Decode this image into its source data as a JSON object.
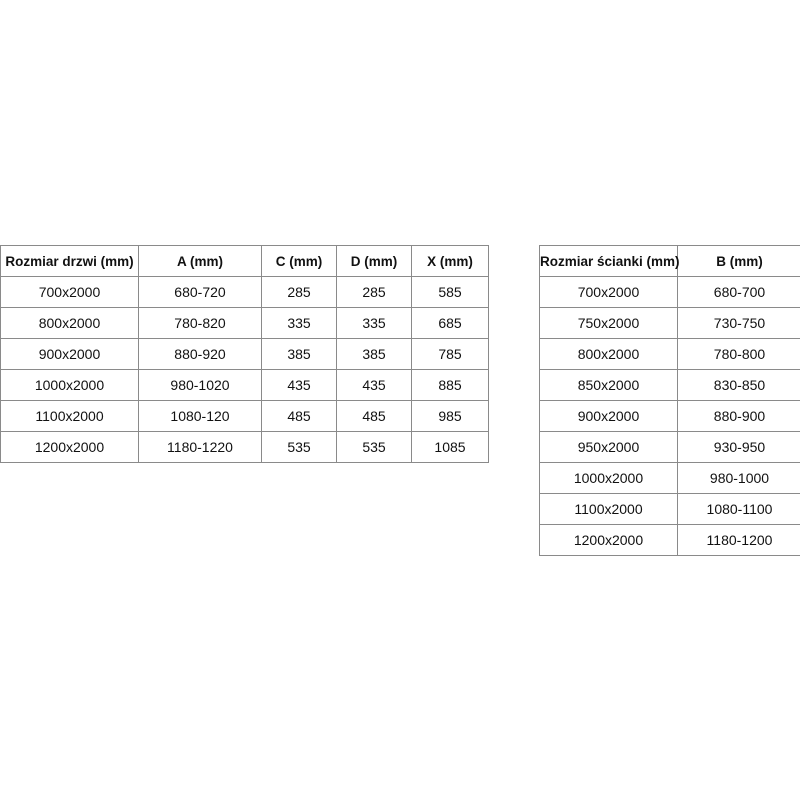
{
  "door_table": {
    "headers": [
      "Rozmiar drzwi (mm)",
      "A (mm)",
      "C (mm)",
      "D (mm)",
      "X (mm)"
    ],
    "rows": [
      [
        "700x2000",
        "680-720",
        "285",
        "285",
        "585"
      ],
      [
        "800x2000",
        "780-820",
        "335",
        "335",
        "685"
      ],
      [
        "900x2000",
        "880-920",
        "385",
        "385",
        "785"
      ],
      [
        "1000x2000",
        "980-1020",
        "435",
        "435",
        "885"
      ],
      [
        "1100x2000",
        "1080-120",
        "485",
        "485",
        "985"
      ],
      [
        "1200x2000",
        "1180-1220",
        "535",
        "535",
        "1085"
      ]
    ]
  },
  "wall_table": {
    "headers": [
      "Rozmiar ścianki (mm)",
      "B (mm)"
    ],
    "rows": [
      [
        "700x2000",
        "680-700"
      ],
      [
        "750x2000",
        "730-750"
      ],
      [
        "800x2000",
        "780-800"
      ],
      [
        "850x2000",
        "830-850"
      ],
      [
        "900x2000",
        "880-900"
      ],
      [
        "950x2000",
        "930-950"
      ],
      [
        "1000x2000",
        "980-1000"
      ],
      [
        "1100x2000",
        "1080-1100"
      ],
      [
        "1200x2000",
        "1180-1200"
      ]
    ]
  }
}
